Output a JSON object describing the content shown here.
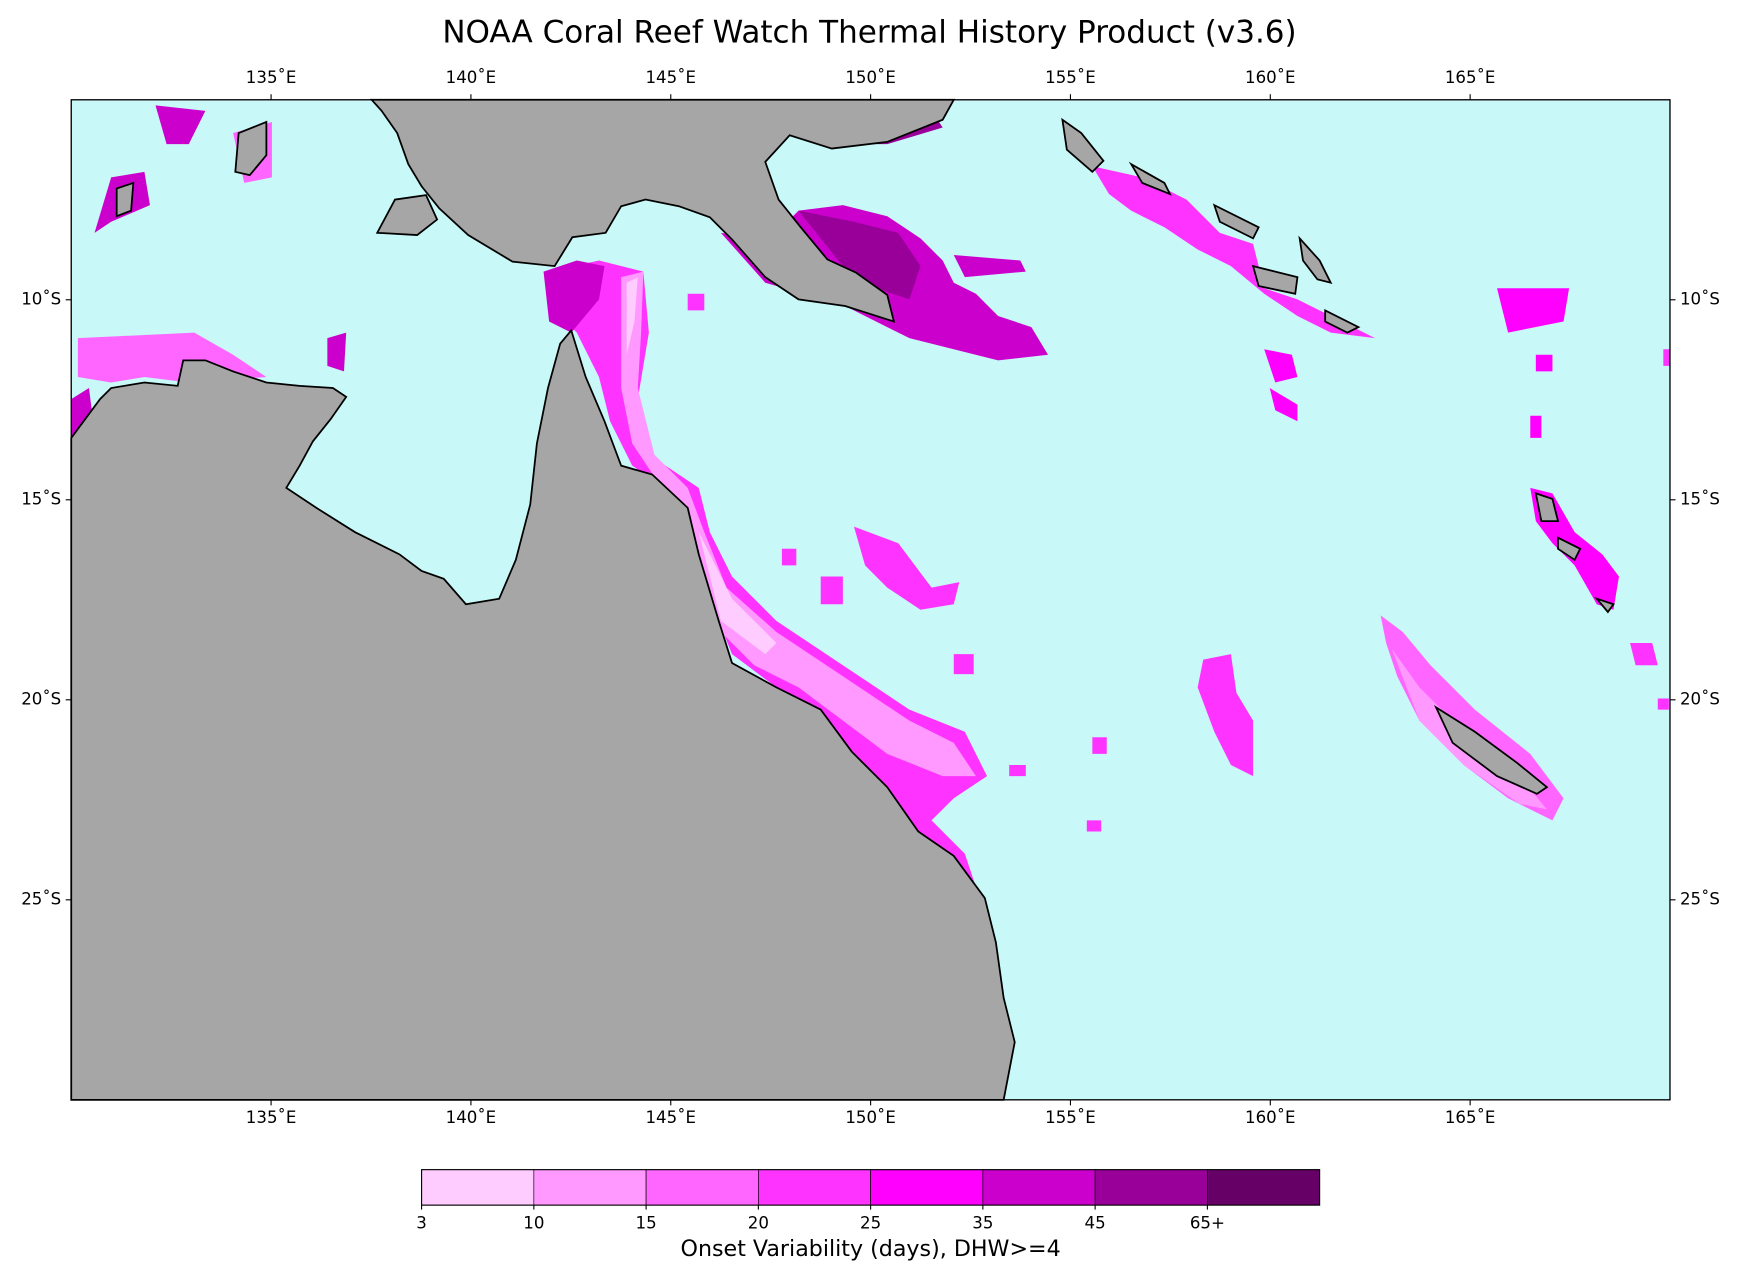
{
  "title": "NOAA Coral Reef Watch Thermal History Product (v3.6)",
  "map": {
    "xlim": [
      130,
      170
    ],
    "ylim": [
      -30,
      -5
    ],
    "xticks": [
      {
        "value": 135,
        "label": "135˚E"
      },
      {
        "value": 140,
        "label": "140˚E"
      },
      {
        "value": 145,
        "label": "145˚E"
      },
      {
        "value": 150,
        "label": "150˚E"
      },
      {
        "value": 155,
        "label": "155˚E"
      },
      {
        "value": 160,
        "label": "160˚E"
      },
      {
        "value": 165,
        "label": "165˚E"
      }
    ],
    "yticks": [
      {
        "value": -10,
        "label": "10˚S"
      },
      {
        "value": -15,
        "label": "15˚S"
      },
      {
        "value": -20,
        "label": "20˚S"
      },
      {
        "value": -25,
        "label": "25˚S"
      }
    ],
    "ocean_color": "#c8f8f8",
    "land_color": "#a6a6a6"
  },
  "colorbar": {
    "label": "Onset Variability (days), DHW>=4",
    "ticks": [
      3,
      10,
      15,
      20,
      25,
      35,
      45,
      {
        "value": 65,
        "label": "65+"
      }
    ],
    "colors": [
      "#ffccff",
      "#ff99ff",
      "#ff66ff",
      "#ff33ff",
      "#ff00ff",
      "#cc00cc",
      "#990099",
      "#660066"
    ]
  }
}
